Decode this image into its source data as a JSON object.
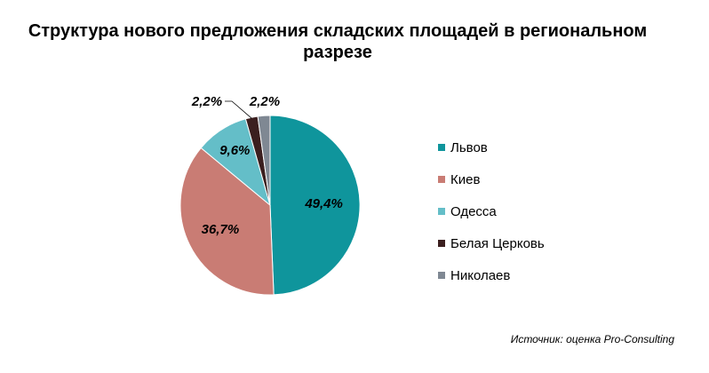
{
  "chart_data": {
    "type": "pie",
    "title": "Структура нового предложения складских площадей в региональном разрезе",
    "categories": [
      "Львов",
      "Киев",
      "Одесса",
      "Белая Церковь",
      "Николаев"
    ],
    "values": [
      49.4,
      36.7,
      9.6,
      2.2,
      2.2
    ],
    "data_labels": [
      "49,4%",
      "36,7%",
      "9,6%",
      "2,2%",
      "2,2%"
    ],
    "colors": [
      "#0F959C",
      "#C97C74",
      "#64BEC8",
      "#3B1F1F",
      "#7F8893"
    ],
    "start_angle_deg": 0,
    "direction": "clockwise",
    "legend_position": "right"
  },
  "source_note": "Источник: оценка Pro-Consulting"
}
